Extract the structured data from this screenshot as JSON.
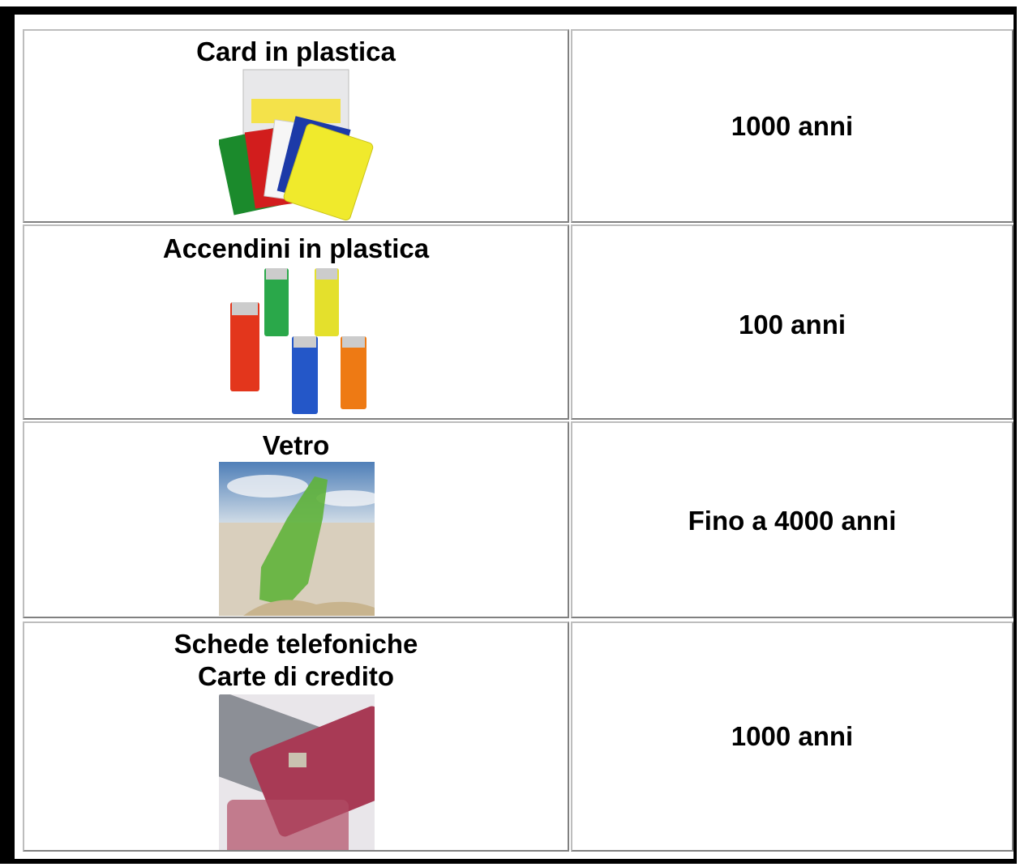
{
  "table": {
    "rows": [
      {
        "item": [
          "Card in plastica"
        ],
        "duration": "1000 anni"
      },
      {
        "item": [
          "Accendini in plastica"
        ],
        "duration": "100 anni"
      },
      {
        "item": [
          "Vetro"
        ],
        "duration": "Fino a 4000 anni"
      },
      {
        "item": [
          "Schede telefoniche",
          "Carte di credito"
        ],
        "duration": "1000 anni"
      }
    ]
  }
}
